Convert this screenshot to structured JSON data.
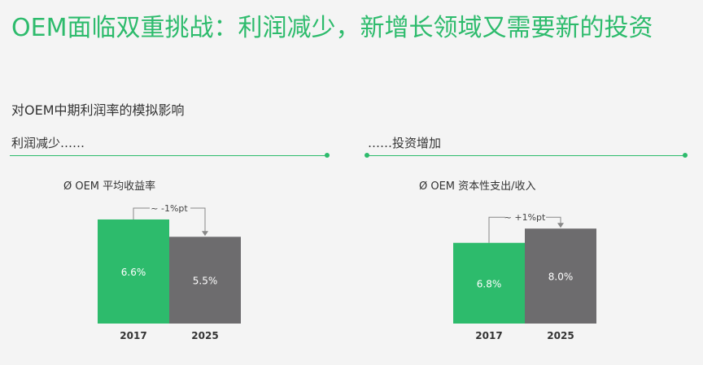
{
  "title": "OEM面临双重挑战：利润减少，新增长领域又需要新的投资",
  "subtitle": "对OEM中期利润率的模拟影响",
  "sections": [
    {
      "label": "利润减少……"
    },
    {
      "label": "……投资增加"
    }
  ],
  "colors": {
    "accent": "#2dbb6c",
    "bar2017": "#2dbb6c",
    "bar2025": "#6d6c6e"
  },
  "chart_data": [
    {
      "type": "bar",
      "title": "Ø OEM 平均收益率",
      "categories": [
        "2017",
        "2025"
      ],
      "values": [
        6.6,
        5.5
      ],
      "data_labels": [
        "6.6%",
        "5.5%"
      ],
      "annotation": "~ -1%pt",
      "unit": "%"
    },
    {
      "type": "bar",
      "title": "Ø OEM 资本性支出/收入",
      "categories": [
        "2017",
        "2025"
      ],
      "values": [
        6.8,
        8.0
      ],
      "data_labels": [
        "6.8%",
        "8.0%"
      ],
      "annotation": "~ +1%pt",
      "unit": "%"
    }
  ]
}
